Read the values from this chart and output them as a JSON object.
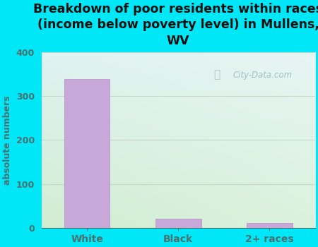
{
  "title": "Breakdown of poor residents within races\n(income below poverty level) in Mullens,\nWV",
  "categories": [
    "White",
    "Black",
    "2+ races"
  ],
  "values": [
    338,
    21,
    11
  ],
  "bar_color": "#c8a8d8",
  "bar_edgecolor": "#b898c8",
  "ylabel": "absolute numbers",
  "ylim": [
    0,
    400
  ],
  "yticks": [
    0,
    100,
    200,
    300,
    400
  ],
  "background_outer": "#00e8f8",
  "title_fontsize": 12.5,
  "title_color": "#111111",
  "tick_color": "#4a7070",
  "label_color": "#4a7070",
  "watermark": "City-Data.com",
  "grid_color": "#c8d8c8"
}
